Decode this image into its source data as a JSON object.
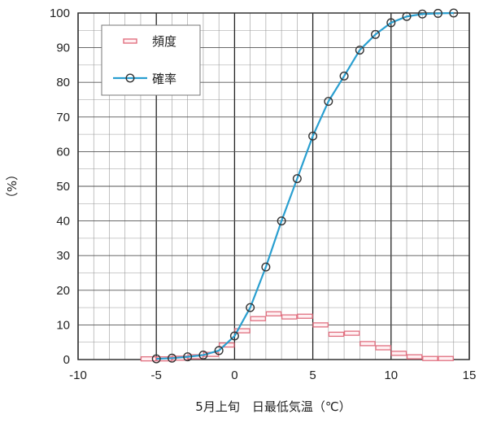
{
  "chart_data": {
    "type": "line",
    "xlabel": "5月上旬　日最低気温（℃）",
    "ylabel": "（%）",
    "xlim": [
      -10,
      15
    ],
    "ylim": [
      0,
      100
    ],
    "x_ticks": [
      -10,
      -5,
      0,
      5,
      10,
      15
    ],
    "y_ticks": [
      0,
      10,
      20,
      30,
      40,
      50,
      60,
      70,
      80,
      90,
      100
    ],
    "x_tick_labels": [
      "-10",
      "-5",
      "0",
      "5",
      "10",
      "15"
    ],
    "y_tick_labels": [
      "0",
      "10",
      "20",
      "30",
      "40",
      "50",
      "60",
      "70",
      "80",
      "90",
      "100"
    ],
    "grid": true,
    "legend": {
      "placement": "top-left",
      "entries": [
        "頻度",
        "確率"
      ]
    },
    "colors": {
      "frequency": "#e07080",
      "probability": "#2a9fd0",
      "marker_edge": "#333333",
      "grid": "#999999"
    },
    "series": [
      {
        "name": "頻度",
        "style": "horizontal-step",
        "x": [
          -5.5,
          -4.5,
          -3.5,
          -2.5,
          -1.5,
          -0.5,
          0.5,
          1.5,
          2.5,
          3.5,
          4.5,
          5.5,
          6.5,
          7.5,
          8.5,
          9.5,
          10.5,
          11.5,
          12.5,
          13.5
        ],
        "values": [
          0.2,
          0.2,
          0.4,
          0.8,
          1.5,
          4.2,
          8.3,
          11.8,
          13.2,
          12.3,
          12.5,
          10.0,
          7.3,
          7.6,
          4.6,
          3.4,
          1.8,
          0.8,
          0.3,
          0.3
        ]
      },
      {
        "name": "確率",
        "style": "line-marker",
        "x": [
          -5,
          -4,
          -3,
          -2,
          -1,
          0,
          1,
          2,
          3,
          4,
          5,
          6,
          7,
          8,
          9,
          10,
          11,
          12,
          13,
          14
        ],
        "values": [
          0.2,
          0.4,
          0.8,
          1.3,
          2.6,
          6.8,
          15.0,
          26.7,
          40.0,
          52.2,
          64.5,
          74.5,
          81.8,
          89.3,
          93.8,
          97.2,
          99.0,
          99.7,
          99.9,
          100.0
        ]
      }
    ]
  }
}
